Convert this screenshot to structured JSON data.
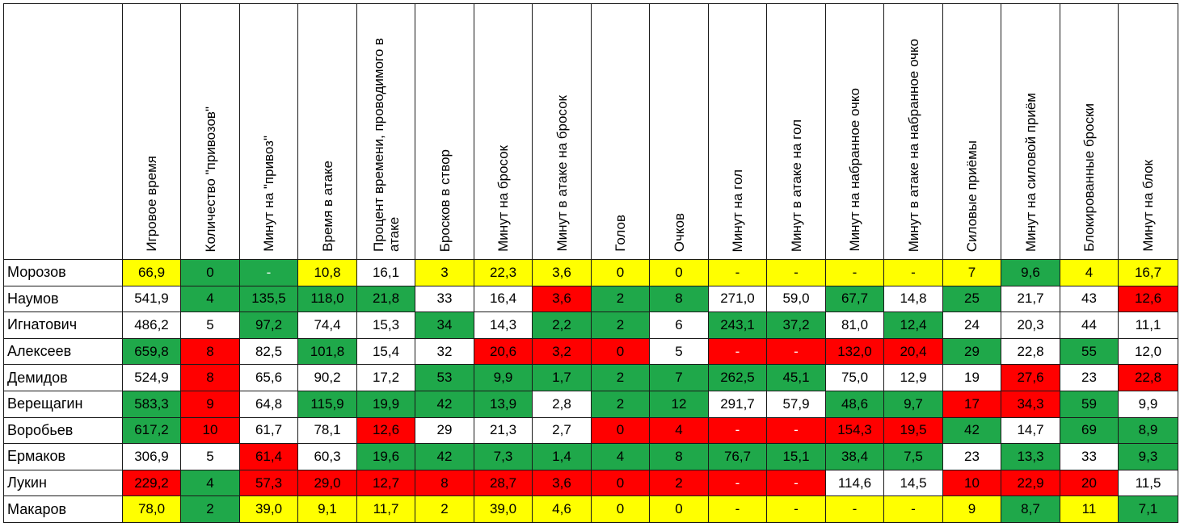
{
  "headers": [
    "Игровое время",
    "Количество \"привозов\"",
    "Минут на \"привоз\"",
    "Время в атаке",
    "Процент времени, проводимого в атаке",
    "Бросков в створ",
    "Минут на бросок",
    "Минут в атаке на бросок",
    "Голов",
    "Очков",
    "Минут на гол",
    "Минут в атаке на гол",
    "Минут на набранное очко",
    "Минут в атаке на набранное очко",
    "Силовые приёмы",
    "Минут на силовой приём",
    "Блокированные броски",
    "Минут на блок"
  ],
  "colors": {
    "y": "#ffff00",
    "g": "#1fa84a",
    "r": "#ff0000",
    "w": "#ffffff"
  },
  "rows": [
    {
      "name": "Морозов",
      "cells": [
        {
          "v": "66,9",
          "c": "y"
        },
        {
          "v": "0",
          "c": "g"
        },
        {
          "v": "-",
          "c": "g"
        },
        {
          "v": "10,8",
          "c": "y"
        },
        {
          "v": "16,1",
          "c": "w"
        },
        {
          "v": "3",
          "c": "y"
        },
        {
          "v": "22,3",
          "c": "y"
        },
        {
          "v": "3,6",
          "c": "y"
        },
        {
          "v": "0",
          "c": "y"
        },
        {
          "v": "0",
          "c": "y"
        },
        {
          "v": "-",
          "c": "y"
        },
        {
          "v": "-",
          "c": "y"
        },
        {
          "v": "-",
          "c": "y"
        },
        {
          "v": "-",
          "c": "y"
        },
        {
          "v": "7",
          "c": "y"
        },
        {
          "v": "9,6",
          "c": "g"
        },
        {
          "v": "4",
          "c": "y"
        },
        {
          "v": "16,7",
          "c": "y"
        }
      ]
    },
    {
      "name": "Наумов",
      "cells": [
        {
          "v": "541,9",
          "c": "w"
        },
        {
          "v": "4",
          "c": "g"
        },
        {
          "v": "135,5",
          "c": "g"
        },
        {
          "v": "118,0",
          "c": "g"
        },
        {
          "v": "21,8",
          "c": "g"
        },
        {
          "v": "33",
          "c": "w"
        },
        {
          "v": "16,4",
          "c": "w"
        },
        {
          "v": "3,6",
          "c": "r"
        },
        {
          "v": "2",
          "c": "g"
        },
        {
          "v": "8",
          "c": "g"
        },
        {
          "v": "271,0",
          "c": "w"
        },
        {
          "v": "59,0",
          "c": "w"
        },
        {
          "v": "67,7",
          "c": "g"
        },
        {
          "v": "14,8",
          "c": "w"
        },
        {
          "v": "25",
          "c": "g"
        },
        {
          "v": "21,7",
          "c": "w"
        },
        {
          "v": "43",
          "c": "w"
        },
        {
          "v": "12,6",
          "c": "r"
        }
      ]
    },
    {
      "name": "Игнатович",
      "cells": [
        {
          "v": "486,2",
          "c": "w"
        },
        {
          "v": "5",
          "c": "w"
        },
        {
          "v": "97,2",
          "c": "g"
        },
        {
          "v": "74,4",
          "c": "w"
        },
        {
          "v": "15,3",
          "c": "w"
        },
        {
          "v": "34",
          "c": "g"
        },
        {
          "v": "14,3",
          "c": "w"
        },
        {
          "v": "2,2",
          "c": "g"
        },
        {
          "v": "2",
          "c": "g"
        },
        {
          "v": "6",
          "c": "w"
        },
        {
          "v": "243,1",
          "c": "g"
        },
        {
          "v": "37,2",
          "c": "g"
        },
        {
          "v": "81,0",
          "c": "w"
        },
        {
          "v": "12,4",
          "c": "g"
        },
        {
          "v": "24",
          "c": "w"
        },
        {
          "v": "20,3",
          "c": "w"
        },
        {
          "v": "44",
          "c": "w"
        },
        {
          "v": "11,1",
          "c": "w"
        }
      ]
    },
    {
      "name": "Алексеев",
      "cells": [
        {
          "v": "659,8",
          "c": "g"
        },
        {
          "v": "8",
          "c": "r"
        },
        {
          "v": "82,5",
          "c": "w"
        },
        {
          "v": "101,8",
          "c": "g"
        },
        {
          "v": "15,4",
          "c": "w"
        },
        {
          "v": "32",
          "c": "w"
        },
        {
          "v": "20,6",
          "c": "r"
        },
        {
          "v": "3,2",
          "c": "r"
        },
        {
          "v": "0",
          "c": "r"
        },
        {
          "v": "5",
          "c": "w"
        },
        {
          "v": "-",
          "c": "r"
        },
        {
          "v": "-",
          "c": "r"
        },
        {
          "v": "132,0",
          "c": "r"
        },
        {
          "v": "20,4",
          "c": "r"
        },
        {
          "v": "29",
          "c": "g"
        },
        {
          "v": "22,8",
          "c": "w"
        },
        {
          "v": "55",
          "c": "g"
        },
        {
          "v": "12,0",
          "c": "w"
        }
      ]
    },
    {
      "name": "Демидов",
      "cells": [
        {
          "v": "524,9",
          "c": "w"
        },
        {
          "v": "8",
          "c": "r"
        },
        {
          "v": "65,6",
          "c": "w"
        },
        {
          "v": "90,2",
          "c": "w"
        },
        {
          "v": "17,2",
          "c": "w"
        },
        {
          "v": "53",
          "c": "g"
        },
        {
          "v": "9,9",
          "c": "g"
        },
        {
          "v": "1,7",
          "c": "g"
        },
        {
          "v": "2",
          "c": "g"
        },
        {
          "v": "7",
          "c": "g"
        },
        {
          "v": "262,5",
          "c": "g"
        },
        {
          "v": "45,1",
          "c": "g"
        },
        {
          "v": "75,0",
          "c": "w"
        },
        {
          "v": "12,9",
          "c": "w"
        },
        {
          "v": "19",
          "c": "w"
        },
        {
          "v": "27,6",
          "c": "r"
        },
        {
          "v": "23",
          "c": "w"
        },
        {
          "v": "22,8",
          "c": "r"
        }
      ]
    },
    {
      "name": "Верещагин",
      "cells": [
        {
          "v": "583,3",
          "c": "g"
        },
        {
          "v": "9",
          "c": "r"
        },
        {
          "v": "64,8",
          "c": "w"
        },
        {
          "v": "115,9",
          "c": "g"
        },
        {
          "v": "19,9",
          "c": "g"
        },
        {
          "v": "42",
          "c": "g"
        },
        {
          "v": "13,9",
          "c": "g"
        },
        {
          "v": "2,8",
          "c": "w"
        },
        {
          "v": "2",
          "c": "g"
        },
        {
          "v": "12",
          "c": "g"
        },
        {
          "v": "291,7",
          "c": "w"
        },
        {
          "v": "57,9",
          "c": "w"
        },
        {
          "v": "48,6",
          "c": "g"
        },
        {
          "v": "9,7",
          "c": "g"
        },
        {
          "v": "17",
          "c": "r"
        },
        {
          "v": "34,3",
          "c": "r"
        },
        {
          "v": "59",
          "c": "g"
        },
        {
          "v": "9,9",
          "c": "w"
        }
      ]
    },
    {
      "name": "Воробьев",
      "cells": [
        {
          "v": "617,2",
          "c": "g"
        },
        {
          "v": "10",
          "c": "r"
        },
        {
          "v": "61,7",
          "c": "w"
        },
        {
          "v": "78,1",
          "c": "w"
        },
        {
          "v": "12,6",
          "c": "r"
        },
        {
          "v": "29",
          "c": "w"
        },
        {
          "v": "21,3",
          "c": "w"
        },
        {
          "v": "2,7",
          "c": "w"
        },
        {
          "v": "0",
          "c": "r"
        },
        {
          "v": "4",
          "c": "r"
        },
        {
          "v": "-",
          "c": "r"
        },
        {
          "v": "-",
          "c": "r"
        },
        {
          "v": "154,3",
          "c": "r"
        },
        {
          "v": "19,5",
          "c": "r"
        },
        {
          "v": "42",
          "c": "g"
        },
        {
          "v": "14,7",
          "c": "w"
        },
        {
          "v": "69",
          "c": "g"
        },
        {
          "v": "8,9",
          "c": "g"
        }
      ]
    },
    {
      "name": "Ермаков",
      "cells": [
        {
          "v": "306,9",
          "c": "w"
        },
        {
          "v": "5",
          "c": "w"
        },
        {
          "v": "61,4",
          "c": "r"
        },
        {
          "v": "60,3",
          "c": "w"
        },
        {
          "v": "19,6",
          "c": "g"
        },
        {
          "v": "42",
          "c": "g"
        },
        {
          "v": "7,3",
          "c": "g"
        },
        {
          "v": "1,4",
          "c": "g"
        },
        {
          "v": "4",
          "c": "g"
        },
        {
          "v": "8",
          "c": "g"
        },
        {
          "v": "76,7",
          "c": "g"
        },
        {
          "v": "15,1",
          "c": "g"
        },
        {
          "v": "38,4",
          "c": "g"
        },
        {
          "v": "7,5",
          "c": "g"
        },
        {
          "v": "23",
          "c": "w"
        },
        {
          "v": "13,3",
          "c": "g"
        },
        {
          "v": "33",
          "c": "w"
        },
        {
          "v": "9,3",
          "c": "g"
        }
      ]
    },
    {
      "name": "Лукин",
      "cells": [
        {
          "v": "229,2",
          "c": "r"
        },
        {
          "v": "4",
          "c": "g"
        },
        {
          "v": "57,3",
          "c": "r"
        },
        {
          "v": "29,0",
          "c": "r"
        },
        {
          "v": "12,7",
          "c": "r"
        },
        {
          "v": "8",
          "c": "r"
        },
        {
          "v": "28,7",
          "c": "r"
        },
        {
          "v": "3,6",
          "c": "r"
        },
        {
          "v": "0",
          "c": "r"
        },
        {
          "v": "2",
          "c": "r"
        },
        {
          "v": "-",
          "c": "r"
        },
        {
          "v": "-",
          "c": "r"
        },
        {
          "v": "114,6",
          "c": "w"
        },
        {
          "v": "14,5",
          "c": "w"
        },
        {
          "v": "10",
          "c": "r"
        },
        {
          "v": "22,9",
          "c": "r"
        },
        {
          "v": "20",
          "c": "r"
        },
        {
          "v": "11,5",
          "c": "w"
        }
      ]
    },
    {
      "name": "Макаров",
      "cells": [
        {
          "v": "78,0",
          "c": "y"
        },
        {
          "v": "2",
          "c": "g"
        },
        {
          "v": "39,0",
          "c": "y"
        },
        {
          "v": "9,1",
          "c": "y"
        },
        {
          "v": "11,7",
          "c": "y"
        },
        {
          "v": "2",
          "c": "y"
        },
        {
          "v": "39,0",
          "c": "y"
        },
        {
          "v": "4,6",
          "c": "y"
        },
        {
          "v": "0",
          "c": "y"
        },
        {
          "v": "0",
          "c": "y"
        },
        {
          "v": "-",
          "c": "y"
        },
        {
          "v": "-",
          "c": "y"
        },
        {
          "v": "-",
          "c": "y"
        },
        {
          "v": "-",
          "c": "y"
        },
        {
          "v": "9",
          "c": "y"
        },
        {
          "v": "8,7",
          "c": "g"
        },
        {
          "v": "11",
          "c": "y"
        },
        {
          "v": "7,1",
          "c": "g"
        }
      ]
    }
  ]
}
